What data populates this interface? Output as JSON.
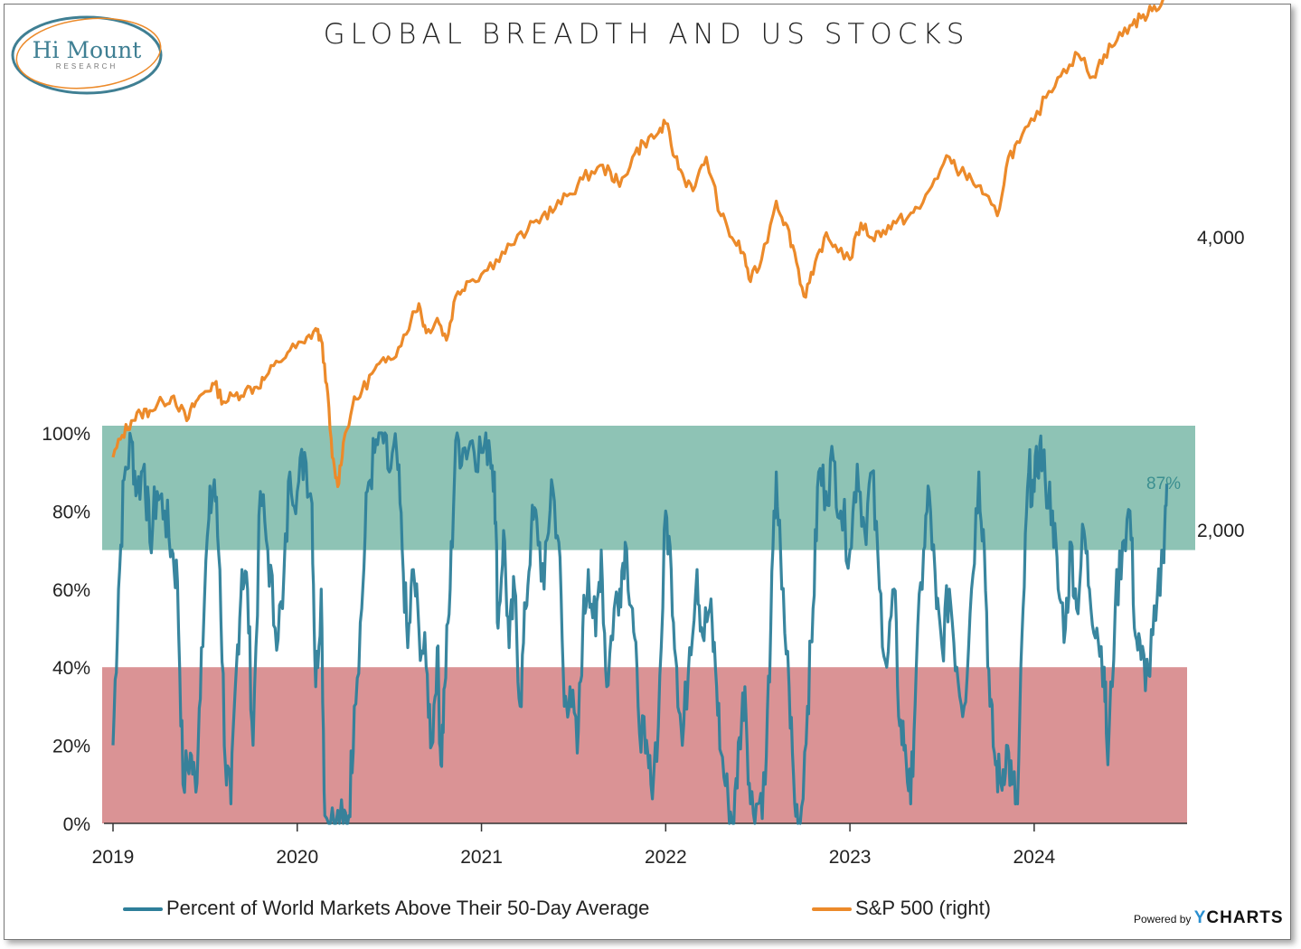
{
  "header": {
    "title": "GLOBAL BREADTH AND US STOCKS"
  },
  "logo": {
    "name": "Hi Mount",
    "sub": "RESEARCH"
  },
  "legend": {
    "breadth_label": "Percent of World Markets Above Their 50-Day Average",
    "spx_label": "S&P 500 (right)"
  },
  "footer": {
    "powered_by": "Powered by",
    "brand_y": "Y",
    "brand_rest": "CHARTS"
  },
  "colors": {
    "breadth": "#2e7f9a",
    "spx": "#ec8a2a",
    "upper_band": "#7ab8a8",
    "lower_band": "#d27b7e"
  },
  "chart_data": {
    "type": "line",
    "title": "GLOBAL BREADTH AND US STOCKS",
    "x_ticks": [
      "2019",
      "2020",
      "2021",
      "2022",
      "2023",
      "2024"
    ],
    "x_range": [
      2019.0,
      2024.83
    ],
    "left_axis": {
      "ticks": [
        "0%",
        "20%",
        "40%",
        "60%",
        "80%",
        "100%"
      ],
      "range": [
        0,
        100
      ]
    },
    "right_axis": {
      "ticks": [
        "2,000",
        "4,000"
      ],
      "range": [
        0,
        5500
      ]
    },
    "bands": [
      {
        "from": 70,
        "to": 100,
        "name": "overbought"
      },
      {
        "from": 0,
        "to": 40,
        "name": "oversold"
      }
    ],
    "last_value_label": "87%",
    "series": [
      {
        "name": "Percent of World Markets Above Their 50-Day Average",
        "axis": "left",
        "points": [
          [
            2019.0,
            20
          ],
          [
            2019.03,
            60
          ],
          [
            2019.06,
            88
          ],
          [
            2019.1,
            98
          ],
          [
            2019.13,
            85
          ],
          [
            2019.17,
            92
          ],
          [
            2019.2,
            72
          ],
          [
            2019.24,
            85
          ],
          [
            2019.28,
            80
          ],
          [
            2019.32,
            70
          ],
          [
            2019.35,
            62
          ],
          [
            2019.38,
            10
          ],
          [
            2019.42,
            18
          ],
          [
            2019.45,
            8
          ],
          [
            2019.48,
            45
          ],
          [
            2019.52,
            78
          ],
          [
            2019.55,
            88
          ],
          [
            2019.58,
            65
          ],
          [
            2019.61,
            15
          ],
          [
            2019.64,
            5
          ],
          [
            2019.67,
            40
          ],
          [
            2019.7,
            65
          ],
          [
            2019.73,
            60
          ],
          [
            2019.76,
            20
          ],
          [
            2019.8,
            85
          ],
          [
            2019.84,
            70
          ],
          [
            2019.88,
            50
          ],
          [
            2019.92,
            55
          ],
          [
            2019.96,
            90
          ],
          [
            2020.0,
            85
          ],
          [
            2020.04,
            95
          ],
          [
            2020.08,
            82
          ],
          [
            2020.1,
            35
          ],
          [
            2020.13,
            60
          ],
          [
            2020.15,
            2
          ],
          [
            2020.2,
            0
          ],
          [
            2020.25,
            0
          ],
          [
            2020.28,
            2
          ],
          [
            2020.31,
            30
          ],
          [
            2020.35,
            55
          ],
          [
            2020.38,
            85
          ],
          [
            2020.42,
            95
          ],
          [
            2020.46,
            100
          ],
          [
            2020.5,
            90
          ],
          [
            2020.54,
            95
          ],
          [
            2020.57,
            70
          ],
          [
            2020.6,
            45
          ],
          [
            2020.63,
            65
          ],
          [
            2020.66,
            50
          ],
          [
            2020.7,
            40
          ],
          [
            2020.73,
            20
          ],
          [
            2020.76,
            45
          ],
          [
            2020.78,
            15
          ],
          [
            2020.8,
            35
          ],
          [
            2020.83,
            60
          ],
          [
            2020.86,
            98
          ],
          [
            2020.9,
            96
          ],
          [
            2020.95,
            98
          ],
          [
            2021.0,
            95
          ],
          [
            2021.04,
            98
          ],
          [
            2021.07,
            90
          ],
          [
            2021.09,
            50
          ],
          [
            2021.12,
            75
          ],
          [
            2021.15,
            45
          ],
          [
            2021.18,
            60
          ],
          [
            2021.21,
            30
          ],
          [
            2021.24,
            55
          ],
          [
            2021.27,
            75
          ],
          [
            2021.3,
            78
          ],
          [
            2021.34,
            60
          ],
          [
            2021.38,
            88
          ],
          [
            2021.42,
            72
          ],
          [
            2021.45,
            30
          ],
          [
            2021.48,
            35
          ],
          [
            2021.52,
            18
          ],
          [
            2021.55,
            50
          ],
          [
            2021.58,
            65
          ],
          [
            2021.62,
            48
          ],
          [
            2021.65,
            70
          ],
          [
            2021.68,
            35
          ],
          [
            2021.72,
            55
          ],
          [
            2021.75,
            60
          ],
          [
            2021.78,
            72
          ],
          [
            2021.82,
            55
          ],
          [
            2021.85,
            30
          ],
          [
            2021.89,
            18
          ],
          [
            2021.92,
            10
          ],
          [
            2021.96,
            25
          ],
          [
            2022.0,
            80
          ],
          [
            2022.03,
            65
          ],
          [
            2022.06,
            40
          ],
          [
            2022.09,
            20
          ],
          [
            2022.13,
            45
          ],
          [
            2022.17,
            65
          ],
          [
            2022.2,
            48
          ],
          [
            2022.24,
            55
          ],
          [
            2022.27,
            40
          ],
          [
            2022.3,
            18
          ],
          [
            2022.34,
            5
          ],
          [
            2022.37,
            0
          ],
          [
            2022.4,
            22
          ],
          [
            2022.43,
            35
          ],
          [
            2022.46,
            5
          ],
          [
            2022.5,
            5
          ],
          [
            2022.54,
            10
          ],
          [
            2022.57,
            50
          ],
          [
            2022.6,
            90
          ],
          [
            2022.63,
            60
          ],
          [
            2022.67,
            35
          ],
          [
            2022.7,
            5
          ],
          [
            2022.73,
            0
          ],
          [
            2022.77,
            30
          ],
          [
            2022.8,
            55
          ],
          [
            2022.83,
            90
          ],
          [
            2022.87,
            85
          ],
          [
            2022.91,
            93
          ],
          [
            2022.95,
            80
          ],
          [
            2023.0,
            70
          ],
          [
            2023.04,
            92
          ],
          [
            2023.08,
            75
          ],
          [
            2023.12,
            90
          ],
          [
            2023.16,
            60
          ],
          [
            2023.2,
            40
          ],
          [
            2023.24,
            60
          ],
          [
            2023.27,
            25
          ],
          [
            2023.3,
            20
          ],
          [
            2023.33,
            5
          ],
          [
            2023.36,
            40
          ],
          [
            2023.4,
            70
          ],
          [
            2023.43,
            85
          ],
          [
            2023.47,
            55
          ],
          [
            2023.5,
            45
          ],
          [
            2023.54,
            60
          ],
          [
            2023.58,
            40
          ],
          [
            2023.62,
            30
          ],
          [
            2023.66,
            60
          ],
          [
            2023.7,
            90
          ],
          [
            2023.73,
            70
          ],
          [
            2023.76,
            30
          ],
          [
            2023.79,
            15
          ],
          [
            2023.82,
            10
          ],
          [
            2023.85,
            20
          ],
          [
            2023.88,
            10
          ],
          [
            2023.91,
            5
          ],
          [
            2023.94,
            55
          ],
          [
            2023.97,
            90
          ],
          [
            2024.0,
            85
          ],
          [
            2024.03,
            97
          ],
          [
            2024.06,
            88
          ],
          [
            2024.1,
            80
          ],
          [
            2024.13,
            60
          ],
          [
            2024.17,
            50
          ],
          [
            2024.2,
            72
          ],
          [
            2024.23,
            55
          ],
          [
            2024.27,
            75
          ],
          [
            2024.3,
            60
          ],
          [
            2024.34,
            50
          ],
          [
            2024.38,
            40
          ],
          [
            2024.4,
            15
          ],
          [
            2024.44,
            55
          ],
          [
            2024.48,
            72
          ],
          [
            2024.52,
            80
          ],
          [
            2024.55,
            48
          ],
          [
            2024.58,
            42
          ],
          [
            2024.62,
            38
          ],
          [
            2024.66,
            52
          ],
          [
            2024.7,
            70
          ],
          [
            2024.72,
            87
          ]
        ]
      },
      {
        "name": "S&P 500 (right)",
        "axis": "right",
        "points": [
          [
            2019.0,
            2500
          ],
          [
            2019.05,
            2650
          ],
          [
            2019.1,
            2750
          ],
          [
            2019.15,
            2800
          ],
          [
            2019.2,
            2820
          ],
          [
            2019.27,
            2880
          ],
          [
            2019.33,
            2920
          ],
          [
            2019.4,
            2750
          ],
          [
            2019.45,
            2880
          ],
          [
            2019.5,
            2950
          ],
          [
            2019.55,
            3000
          ],
          [
            2019.6,
            2880
          ],
          [
            2019.66,
            2920
          ],
          [
            2019.72,
            2960
          ],
          [
            2019.78,
            2980
          ],
          [
            2019.83,
            3050
          ],
          [
            2019.9,
            3150
          ],
          [
            2019.96,
            3230
          ],
          [
            2020.04,
            3280
          ],
          [
            2020.1,
            3380
          ],
          [
            2020.13,
            3300
          ],
          [
            2020.16,
            3000
          ],
          [
            2020.19,
            2500
          ],
          [
            2020.22,
            2300
          ],
          [
            2020.25,
            2600
          ],
          [
            2020.3,
            2850
          ],
          [
            2020.35,
            2950
          ],
          [
            2020.42,
            3100
          ],
          [
            2020.48,
            3150
          ],
          [
            2020.55,
            3250
          ],
          [
            2020.62,
            3450
          ],
          [
            2020.66,
            3550
          ],
          [
            2020.7,
            3350
          ],
          [
            2020.76,
            3450
          ],
          [
            2020.81,
            3300
          ],
          [
            2020.86,
            3600
          ],
          [
            2020.92,
            3700
          ],
          [
            2021.0,
            3750
          ],
          [
            2021.08,
            3850
          ],
          [
            2021.16,
            3950
          ],
          [
            2021.25,
            4050
          ],
          [
            2021.33,
            4150
          ],
          [
            2021.4,
            4200
          ],
          [
            2021.48,
            4300
          ],
          [
            2021.55,
            4400
          ],
          [
            2021.63,
            4480
          ],
          [
            2021.7,
            4450
          ],
          [
            2021.75,
            4350
          ],
          [
            2021.82,
            4550
          ],
          [
            2021.88,
            4650
          ],
          [
            2021.95,
            4700
          ],
          [
            2022.0,
            4780
          ],
          [
            2022.05,
            4550
          ],
          [
            2022.1,
            4400
          ],
          [
            2022.16,
            4350
          ],
          [
            2022.22,
            4550
          ],
          [
            2022.3,
            4150
          ],
          [
            2022.36,
            4000
          ],
          [
            2022.42,
            3900
          ],
          [
            2022.46,
            3700
          ],
          [
            2022.52,
            3850
          ],
          [
            2022.6,
            4250
          ],
          [
            2022.65,
            4100
          ],
          [
            2022.7,
            3900
          ],
          [
            2022.75,
            3600
          ],
          [
            2022.8,
            3750
          ],
          [
            2022.86,
            4000
          ],
          [
            2022.92,
            3950
          ],
          [
            2023.0,
            3850
          ],
          [
            2023.06,
            4100
          ],
          [
            2023.12,
            4000
          ],
          [
            2023.18,
            4050
          ],
          [
            2023.25,
            4100
          ],
          [
            2023.32,
            4150
          ],
          [
            2023.38,
            4200
          ],
          [
            2023.46,
            4400
          ],
          [
            2023.54,
            4550
          ],
          [
            2023.6,
            4450
          ],
          [
            2023.66,
            4400
          ],
          [
            2023.72,
            4300
          ],
          [
            2023.8,
            4150
          ],
          [
            2023.86,
            4550
          ],
          [
            2023.92,
            4650
          ],
          [
            2024.0,
            4800
          ],
          [
            2024.08,
            5000
          ],
          [
            2024.16,
            5150
          ],
          [
            2024.24,
            5250
          ],
          [
            2024.32,
            5100
          ],
          [
            2024.38,
            5250
          ],
          [
            2024.45,
            5350
          ],
          [
            2024.52,
            5450
          ],
          [
            2024.58,
            5500
          ],
          [
            2024.64,
            5550
          ],
          [
            2024.7,
            5630
          ]
        ]
      }
    ]
  }
}
